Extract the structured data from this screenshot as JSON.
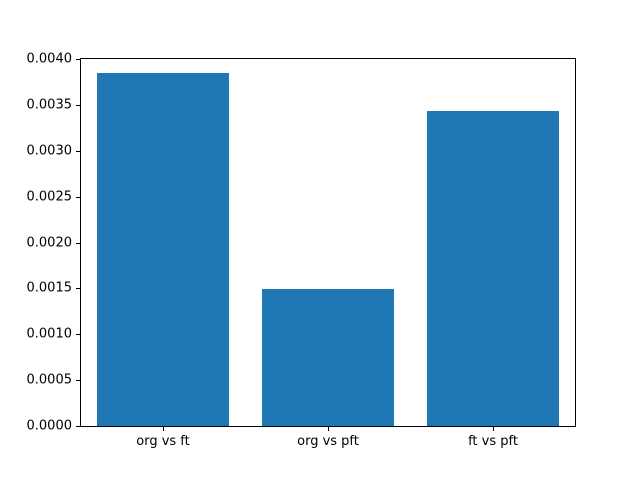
{
  "chart_data": {
    "type": "bar",
    "categories": [
      "org vs ft",
      "org vs pft",
      "ft vs pft"
    ],
    "values": [
      0.00385,
      0.00149,
      0.00343
    ],
    "title": "",
    "xlabel": "",
    "ylabel": "",
    "ylim": [
      0.0,
      0.004
    ],
    "xlim": [
      -0.5,
      2.5
    ],
    "bar_width_data_units": 0.8,
    "ytick_values": [
      0.0,
      0.0005,
      0.001,
      0.0015,
      0.002,
      0.0025,
      0.003,
      0.0035,
      0.004
    ],
    "ytick_labels": [
      "0.0000",
      "0.0005",
      "0.0010",
      "0.0015",
      "0.0020",
      "0.0025",
      "0.0030",
      "0.0035",
      "0.0040"
    ],
    "grid": false,
    "legend": null,
    "bar_color": "#1f77b4",
    "axis_color": "#000000",
    "background_color": "#ffffff"
  }
}
